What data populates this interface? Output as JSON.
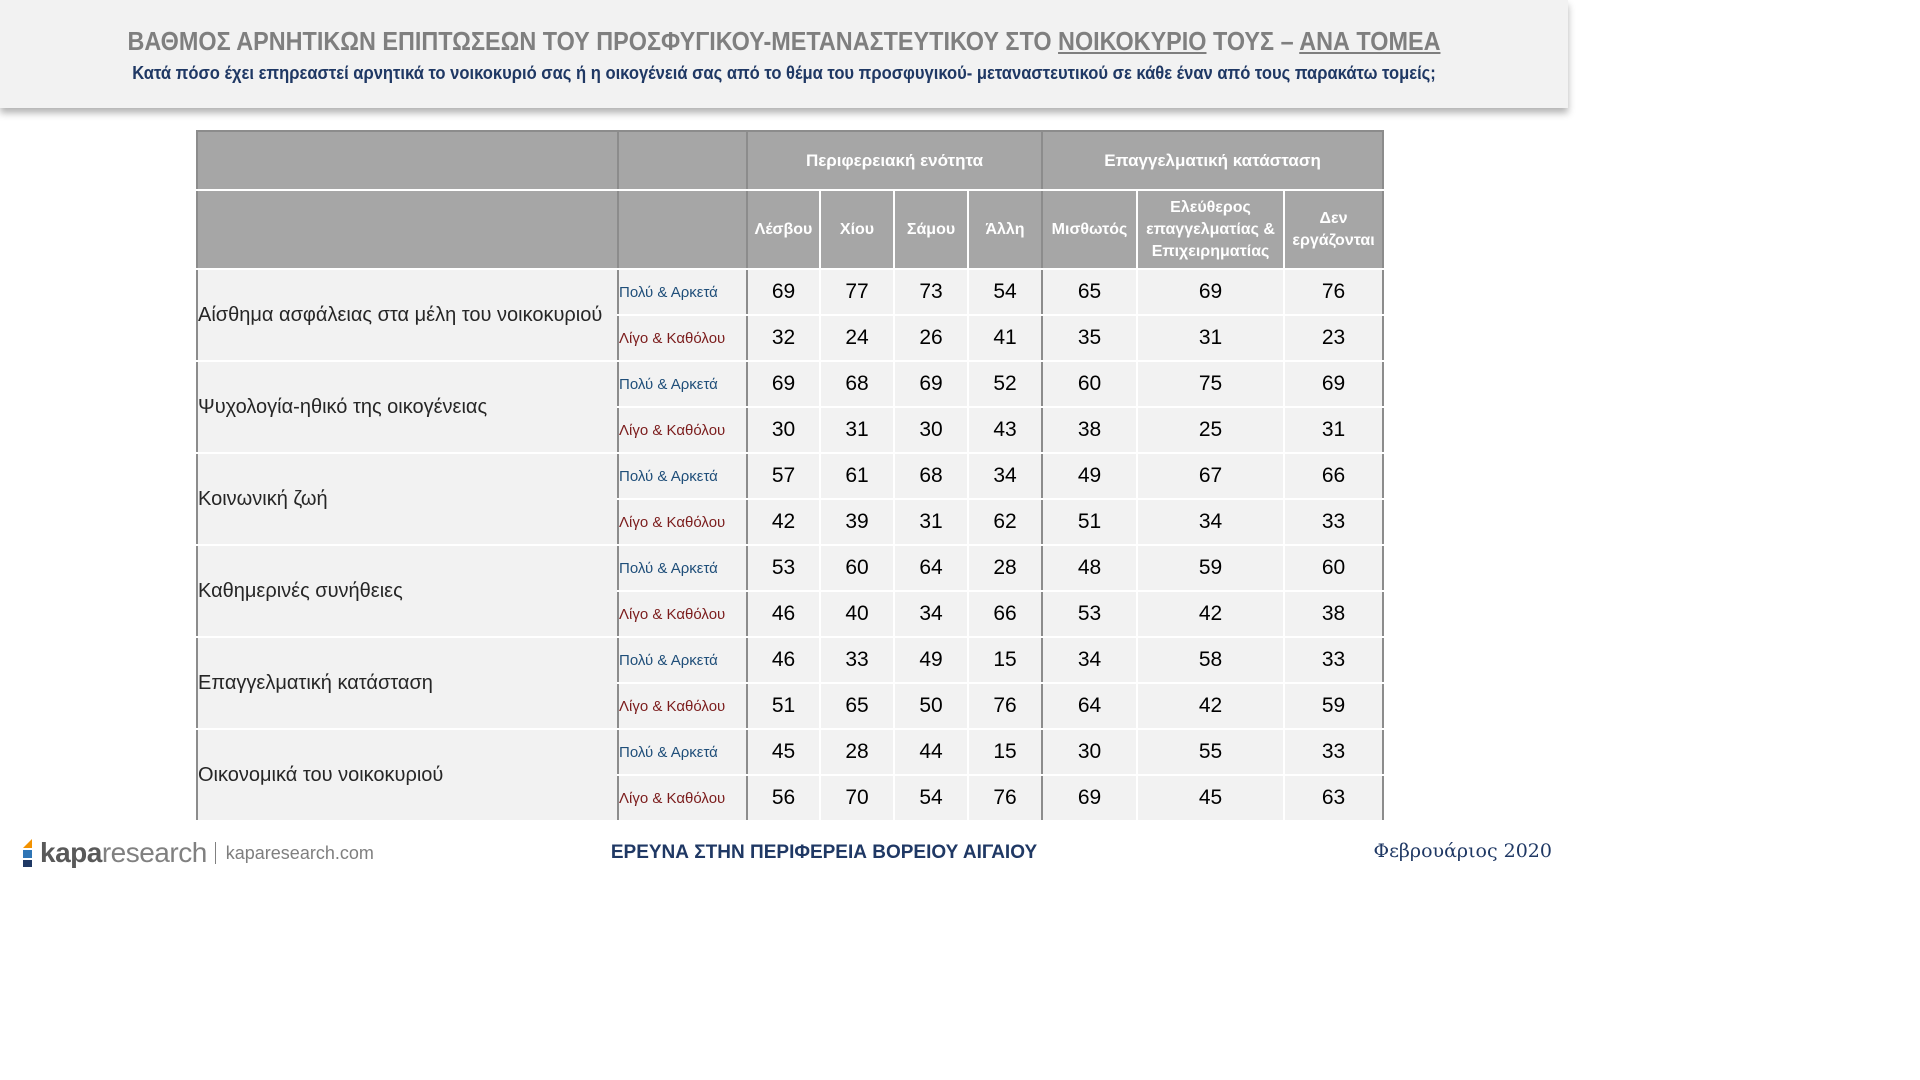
{
  "header": {
    "title_part1": "ΒΑΘΜΟΣ ΑΡΝΗΤΙΚΩΝ ΕΠΙΠΤΩΣΕΩΝ ΤΟΥ ΠΡΟΣΦΥΓΙΚΟΥ-ΜΕΤΑΝΑΣΤΕΥΤΙΚΟΥ ΣΤΟ ",
    "title_part2": "ΝΟΙΚΟΚΥΡΙΟ",
    "title_part3": " ΤΟΥΣ – ",
    "title_part4": "ΑΝΑ ΤΟΜΕΑ",
    "subtitle": "Κατά πόσο έχει επηρεαστεί αρνητικά το νοικοκυριό σας ή η οικογένειά σας από το θέμα του προσφυγικού- μεταναστευτικού σε κάθε έναν από τους παρακάτω τομείς;"
  },
  "table": {
    "group_headers": [
      "Περιφερειακή ενότητα",
      "Επαγγελματική κατάσταση"
    ],
    "columns": [
      [
        "Λέσβου"
      ],
      [
        "Χίου"
      ],
      [
        "Σάμου"
      ],
      [
        "Άλλη"
      ],
      [
        "Μισθωτός"
      ],
      [
        "Ελεύθερος",
        "επαγγελματίας &",
        "Επιχειρηματίας"
      ],
      [
        "Δεν",
        "εργάζονται"
      ]
    ],
    "response_labels": [
      "Πολύ & Αρκετά",
      "Λίγο & Καθόλου"
    ],
    "rows": [
      {
        "category": "Αίσθημα ασφάλειας στα μέλη του νοικοκυριού",
        "positive": [
          69,
          77,
          73,
          54,
          65,
          69,
          76
        ],
        "negative": [
          32,
          24,
          26,
          41,
          35,
          31,
          23
        ]
      },
      {
        "category": "Ψυχολογία-ηθικό της οικογένειας",
        "positive": [
          69,
          68,
          69,
          52,
          60,
          75,
          69
        ],
        "negative": [
          30,
          31,
          30,
          43,
          38,
          25,
          31
        ]
      },
      {
        "category": "Κοινωνική ζωή",
        "positive": [
          57,
          61,
          68,
          34,
          49,
          67,
          66
        ],
        "negative": [
          42,
          39,
          31,
          62,
          51,
          34,
          33
        ]
      },
      {
        "category": "Καθημερινές συνήθειες",
        "positive": [
          53,
          60,
          64,
          28,
          48,
          59,
          60
        ],
        "negative": [
          46,
          40,
          34,
          66,
          53,
          42,
          38
        ]
      },
      {
        "category": "Επαγγελματική κατάσταση",
        "positive": [
          46,
          33,
          49,
          15,
          34,
          58,
          33
        ],
        "negative": [
          51,
          65,
          50,
          76,
          64,
          42,
          59
        ]
      },
      {
        "category": "Οικονομικά του νοικοκυριού",
        "positive": [
          45,
          28,
          44,
          15,
          30,
          55,
          33
        ],
        "negative": [
          56,
          70,
          54,
          76,
          69,
          45,
          63
        ]
      }
    ]
  },
  "footer": {
    "logo_bold": "kapa",
    "logo_light": "research",
    "url": "kaparesearch.com",
    "center": "ΕΡΕΥΝΑ ΣΤΗΝ ΠΕΡΙΦΕΡΕΙΑ ΒΟΡΕΙΟΥ ΑΙΓΑΙΟΥ",
    "date": "Φεβρουάριος 2020"
  }
}
